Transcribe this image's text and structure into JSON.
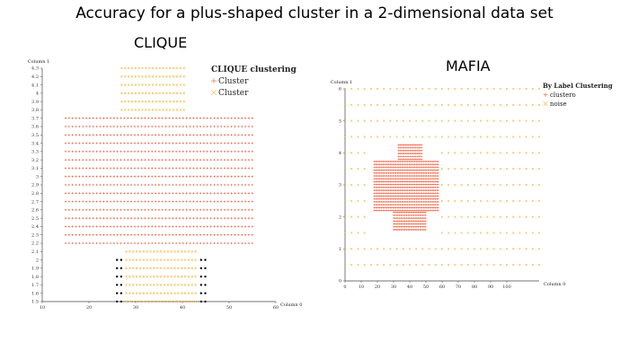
{
  "figure": {
    "title": "Accuracy for a plus-shaped cluster in a 2-dimensional data set"
  },
  "chart_data": [
    {
      "type": "scatter",
      "title": "CLIQUE",
      "xlabel": "Column 0",
      "ylabel": "Column 1",
      "xlim": [
        10,
        60
      ],
      "ylim": [
        1.5,
        4.3
      ],
      "xticks": [
        "10",
        "20",
        "30",
        "40",
        "50",
        "60"
      ],
      "yticks": [
        "1.5",
        "1.6",
        "1.7",
        "1.8",
        "1.9",
        "2",
        "2.1",
        "2.2",
        "2.3",
        "2.4",
        "2.5",
        "2.6",
        "2.7",
        "2.8",
        "2.9",
        "3",
        "3.1",
        "3.2",
        "3.3",
        "3.4",
        "3.5",
        "3.6",
        "3.7",
        "3.8",
        "3.9",
        "4",
        "4.1",
        "4.2",
        "4.3"
      ],
      "legend": {
        "title": "CLIQUE clustering",
        "placement": "top-right",
        "entries": [
          {
            "label": "Cluster",
            "marker": "+",
            "color": "#f05a3a"
          },
          {
            "label": "Cluster",
            "marker": "x",
            "color": "#f5b942"
          }
        ]
      },
      "series": [
        {
          "marker": "+",
          "color": "#f05a3a",
          "regions": [
            {
              "x": [
                15,
                55
              ],
              "y": [
                2.2,
                3.7
              ],
              "xstep": 0.74,
              "ystep": 0.1
            }
          ]
        },
        {
          "marker": "x",
          "color": "#f5b942",
          "regions": [
            {
              "x": [
                27,
                41
              ],
              "y": [
                3.8,
                4.3
              ],
              "xstep": 0.74,
              "ystep": 0.1
            },
            {
              "x": [
                28,
                43
              ],
              "y": [
                1.5,
                2.1
              ],
              "xstep": 0.74,
              "ystep": 0.1
            },
            {
              "x": [
                35,
                35
              ],
              "y": [
                2.9,
                2.9
              ],
              "xstep": 1,
              "ystep": 1
            }
          ]
        },
        {
          "marker": "o",
          "color": "#000000",
          "regions": [
            {
              "x": [
                26,
                27
              ],
              "y": [
                1.5,
                2.0
              ],
              "xstep": 0.9,
              "ystep": 0.1
            },
            {
              "x": [
                44,
                45
              ],
              "y": [
                1.5,
                2.0
              ],
              "xstep": 0.9,
              "ystep": 0.1
            }
          ]
        }
      ]
    },
    {
      "type": "scatter",
      "title": "MAFIA",
      "xlabel": "Column 0",
      "ylabel": "Column 1",
      "xlim": [
        0,
        120
      ],
      "ylim": [
        0,
        6
      ],
      "xticks": [
        "0",
        "10",
        "20",
        "30",
        "40",
        "50",
        "60",
        "70",
        "80",
        "90",
        "100"
      ],
      "yticks": [
        "0",
        "1",
        "2",
        "3",
        "4",
        "5",
        "6"
      ],
      "legend": {
        "title": "By Label Clustering",
        "placement": "top-right",
        "entries": [
          {
            "label": "clustero",
            "marker": "+",
            "color": "#f05a3a"
          },
          {
            "label": "noise",
            "marker": "x",
            "color": "#f5b942"
          }
        ]
      },
      "series": [
        {
          "marker": "x",
          "color": "#f5b942",
          "regions": [
            {
              "x": [
                0,
                120
              ],
              "y": [
                0.5,
                6
              ],
              "xstep": 4,
              "ystep": 0.5,
              "exclude": [
                [
                  16,
                  57,
                  1.5,
                  4.4
                ]
              ]
            }
          ]
        },
        {
          "marker": "+",
          "color": "#f05a3a",
          "regions": [
            {
              "x": [
                18,
                58
              ],
              "y": [
                2.2,
                3.8
              ],
              "xstep": 0.9,
              "ystep": 0.09
            },
            {
              "x": [
                33,
                48
              ],
              "y": [
                3.8,
                4.3
              ],
              "xstep": 0.9,
              "ystep": 0.09
            },
            {
              "x": [
                30,
                50
              ],
              "y": [
                1.6,
                2.2
              ],
              "xstep": 0.9,
              "ystep": 0.09
            }
          ]
        }
      ]
    }
  ]
}
